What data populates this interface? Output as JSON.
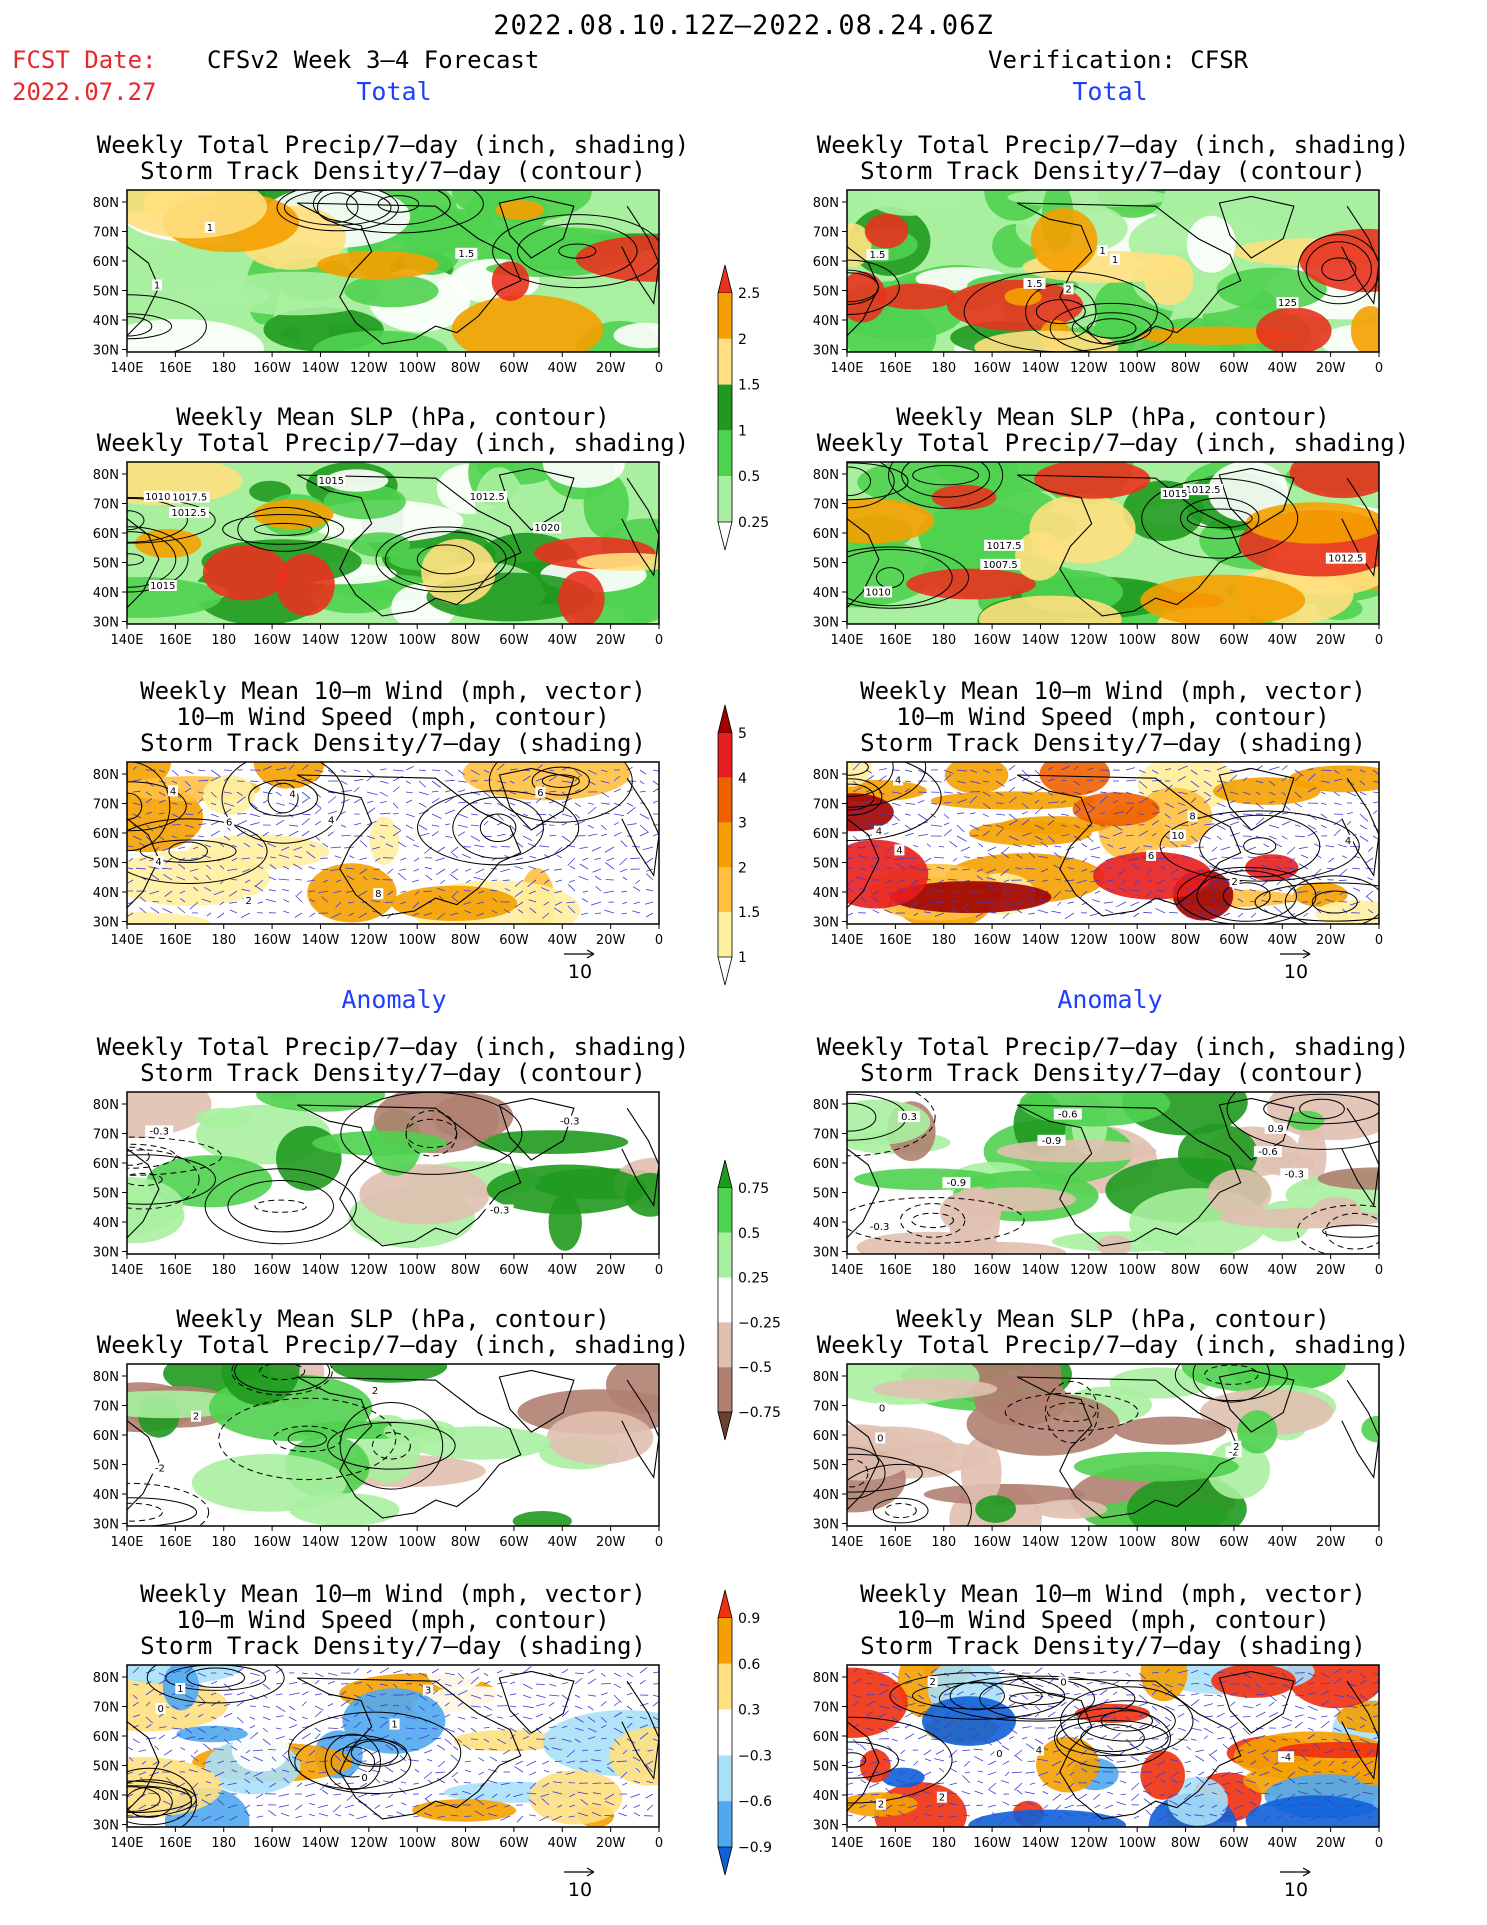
{
  "header": {
    "title": "2022.08.10.12Z–2022.08.24.06Z",
    "fcst_label": "FCST Date:",
    "fcst_date": "2022.07.27",
    "left_title": "CFSv2 Week 3–4 Forecast",
    "right_title": "Verification: CFSR"
  },
  "sections": {
    "total": "Total",
    "anomaly": "Anomaly"
  },
  "panel_titles": {
    "precip_storm": [
      "Weekly Total Precip/7–day (inch, shading)",
      "Storm Track Density/7–day (contour)"
    ],
    "slp_precip": [
      "Weekly Mean SLP (hPa, contour)",
      "Weekly Total Precip/7–day (inch, shading)"
    ],
    "wind_storm": [
      "Weekly Mean 10–m Wind (mph, vector)",
      "10–m Wind Speed (mph, contour)",
      "Storm Track Density/7–day (shading)"
    ]
  },
  "axes": {
    "lat_ticks": [
      "80N",
      "70N",
      "60N",
      "50N",
      "40N",
      "30N"
    ],
    "lon_ticks": [
      "140E",
      "160E",
      "180",
      "160W",
      "140W",
      "120W",
      "100W",
      "80W",
      "60W",
      "40W",
      "20W",
      "0"
    ]
  },
  "vector_ref": "10",
  "colorbars": {
    "precip_total": {
      "labels": [
        "2.5",
        "2",
        "1.5",
        "1",
        "0.5",
        "0.25"
      ],
      "colors": [
        "#e8321e",
        "#f5a000",
        "#ffe080",
        "#1f9a1f",
        "#4fd24f",
        "#a8f0a0",
        "#ffffff"
      ]
    },
    "storm_total": {
      "labels": [
        "5",
        "4",
        "3",
        "2",
        "1.5",
        "1"
      ],
      "colors": [
        "#a00000",
        "#e81e1e",
        "#f06000",
        "#f5a000",
        "#ffc040",
        "#fff0a0",
        "#ffffff"
      ]
    },
    "precip_anom": {
      "labels": [
        "0.75",
        "0.5",
        "0.25",
        "−0.25",
        "−0.5",
        "−0.75"
      ],
      "colors": [
        "#1f9a1f",
        "#4fd24f",
        "#a8f0a0",
        "#ffffff",
        "#e0c0b0",
        "#b08070",
        "#6a4030"
      ]
    },
    "storm_anom": {
      "labels": [
        "0.9",
        "0.6",
        "0.3",
        "−0.3",
        "−0.6",
        "−0.9"
      ],
      "colors": [
        "#f03010",
        "#f5a000",
        "#ffe080",
        "#ffffff",
        "#a8e0f8",
        "#50a8f0",
        "#1060d8"
      ]
    }
  },
  "panels": [
    {
      "id": "left-total-precip-storm",
      "labels": [
        "1",
        "1",
        "1.5"
      ]
    },
    {
      "id": "right-total-precip-storm",
      "labels": [
        "1.5",
        "2",
        "1.5",
        "1",
        "1",
        "125"
      ]
    },
    {
      "id": "left-total-slp-precip",
      "labels": [
        "1010",
        "1012.5",
        "1015",
        "1012.5",
        "1015",
        "1017.5",
        "1020"
      ]
    },
    {
      "id": "right-total-slp-precip",
      "labels": [
        "1010",
        "1012.5",
        "1012.5",
        "1015",
        "1007.5",
        "1017.5"
      ]
    },
    {
      "id": "left-total-wind-storm",
      "labels": [
        "4",
        "4",
        "4",
        "2",
        "6",
        "8",
        "4",
        "6"
      ]
    },
    {
      "id": "right-total-wind-storm",
      "labels": [
        "4",
        "6",
        "4",
        "2",
        "4",
        "8",
        "10",
        "4"
      ]
    },
    {
      "id": "left-anom-precip-storm",
      "labels": [
        "-0.3",
        "-0.3",
        "-0.3"
      ]
    },
    {
      "id": "right-anom-precip-storm",
      "labels": [
        "-0.3",
        "-0.9",
        "-0.6",
        "-0.3",
        "-0.6",
        "0.3",
        "0.9",
        "-0.9"
      ]
    },
    {
      "id": "left-anom-slp-precip",
      "labels": [
        "-2",
        "2",
        "2"
      ]
    },
    {
      "id": "right-anom-slp-precip",
      "labels": [
        "0",
        "-2",
        "2",
        "0"
      ]
    },
    {
      "id": "left-anom-wind-storm",
      "labels": [
        "0",
        "1",
        "0",
        "3",
        "1"
      ]
    },
    {
      "id": "right-anom-wind-storm",
      "labels": [
        "2",
        "4",
        "2",
        "2",
        "0",
        "-4",
        "0"
      ]
    }
  ]
}
